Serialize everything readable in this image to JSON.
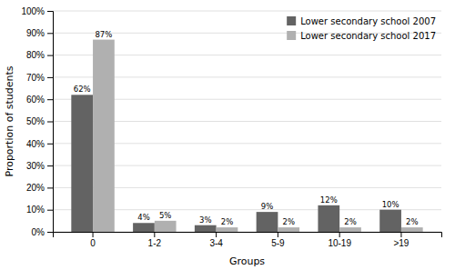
{
  "chart_data": {
    "type": "bar",
    "categories": [
      "0",
      "1-2",
      "3-4",
      "5-9",
      "10-19",
      ">19"
    ],
    "series": [
      {
        "name": "Lower secondary school 2007",
        "color": "#636363",
        "values": [
          62,
          4,
          3,
          9,
          12,
          10
        ],
        "value_labels": [
          "62%",
          "4%",
          "3%",
          "9%",
          "12%",
          "10%"
        ]
      },
      {
        "name": "Lower secondary school 2017",
        "color": "#b0b0b0",
        "values": [
          87,
          5,
          2,
          2,
          2,
          2
        ],
        "value_labels": [
          "87%",
          "5%",
          "2%",
          "2%",
          "2%",
          "2%"
        ]
      }
    ],
    "xlabel": "Groups",
    "ylabel": "Proportion of students",
    "ylim": [
      0,
      100
    ],
    "yticks": [
      {
        "value": 0,
        "label": "0%"
      },
      {
        "value": 10,
        "label": "10%"
      },
      {
        "value": 20,
        "label": "20%"
      },
      {
        "value": 30,
        "label": "30%"
      },
      {
        "value": 40,
        "label": "40%"
      },
      {
        "value": 50,
        "label": "50%"
      },
      {
        "value": 60,
        "label": "60%"
      },
      {
        "value": 70,
        "label": "70%"
      },
      {
        "value": 80,
        "label": "80%"
      },
      {
        "value": 90,
        "label": "90%"
      },
      {
        "value": 100,
        "label": "100%"
      }
    ],
    "grid": true,
    "legend": "upper right",
    "data_labels": true
  }
}
